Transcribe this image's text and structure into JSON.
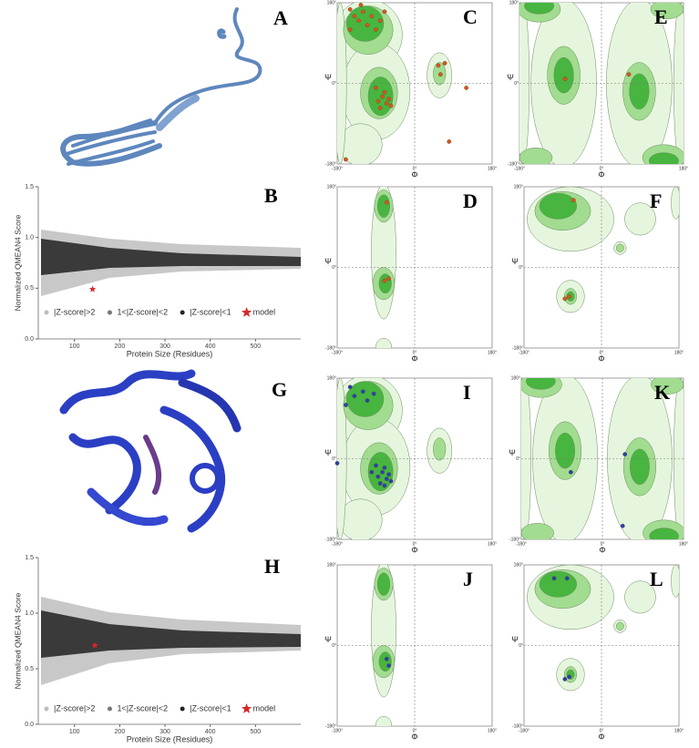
{
  "chart_data": [
    {
      "type": "scatter",
      "letter": "B",
      "xlabel": "Protein Size (Residues)",
      "ylabel": "Normalized QMEAN4 Score",
      "xlim": [
        20,
        600
      ],
      "ylim": [
        0,
        1.5
      ],
      "xticks": [
        100,
        200,
        300,
        400,
        500
      ],
      "yticks": [
        {
          "value": 0,
          "label": "0.0"
        },
        {
          "value": 0.5,
          "label": "0.5"
        },
        {
          "value": 1,
          "label": "1.0"
        },
        {
          "value": 1.5,
          "label": "1.5"
        }
      ],
      "series": [
        {
          "name": "|Z-score|>2",
          "color": "#bdbdbd"
        },
        {
          "name": "1<|Z-score|<2",
          "color": "#777777"
        },
        {
          "name": "|Z-score|<1",
          "color": "#222222"
        },
        {
          "name": "model",
          "color": "#d62728",
          "marker": "star",
          "x": [
            140
          ],
          "values": [
            0.49
          ]
        }
      ]
    },
    {
      "type": "scatter",
      "letter": "H",
      "xlabel": "Protein Size (Residues)",
      "ylabel": "Normalized QMEAN4 Score",
      "xlim": [
        20,
        600
      ],
      "ylim": [
        0,
        1.5
      ],
      "xticks": [
        100,
        200,
        300,
        400,
        500
      ],
      "yticks": [
        {
          "value": 0,
          "label": "0.0"
        },
        {
          "value": 0.5,
          "label": "0.5"
        },
        {
          "value": 1,
          "label": "1.0"
        },
        {
          "value": 1.5,
          "label": "1.5"
        }
      ],
      "series": [
        {
          "name": "|Z-score|>2",
          "color": "#bdbdbd"
        },
        {
          "name": "1<|Z-score|<2",
          "color": "#777777"
        },
        {
          "name": "|Z-score|<1",
          "color": "#222222"
        },
        {
          "name": "model",
          "color": "#d62728",
          "marker": "star",
          "x": [
            145
          ],
          "values": [
            0.71
          ]
        }
      ]
    }
  ],
  "structures": [
    {
      "letter": "A"
    },
    {
      "letter": "G"
    }
  ],
  "ramachandran": {
    "phi_label": "Φ",
    "psi_label": "Ψ",
    "ticks": [
      "-180°",
      "0°",
      "180°"
    ],
    "panels": [
      {
        "letter": "C",
        "region_style": "general",
        "point_color": "#d9541e",
        "points": [
          [
            -150,
            165
          ],
          [
            -140,
            150
          ],
          [
            -130,
            140
          ],
          [
            -120,
            160
          ],
          [
            -110,
            130
          ],
          [
            -100,
            150
          ],
          [
            -90,
            120
          ],
          [
            -80,
            140
          ],
          [
            -70,
            160
          ],
          [
            -150,
            120
          ],
          [
            -125,
            175
          ],
          [
            -85,
            -40
          ],
          [
            -75,
            -30
          ],
          [
            -65,
            -45
          ],
          [
            -70,
            -20
          ],
          [
            -60,
            -35
          ],
          [
            -90,
            -10
          ],
          [
            -55,
            -50
          ],
          [
            -80,
            -55
          ],
          [
            55,
            40
          ],
          [
            60,
            20
          ],
          [
            70,
            45
          ],
          [
            80,
            -130
          ],
          [
            120,
            -10
          ],
          [
            -160,
            -170
          ]
        ]
      },
      {
        "letter": "E",
        "region_style": "glycine",
        "point_color": "#d9541e",
        "points": [
          [
            -80,
            10
          ],
          [
            60,
            20
          ]
        ]
      },
      {
        "letter": "D",
        "region_style": "proline",
        "point_color": "#d9541e",
        "points": [
          [
            -65,
            145
          ],
          [
            -60,
            -25
          ],
          [
            -70,
            -30
          ]
        ]
      },
      {
        "letter": "F",
        "region_style": "prepro",
        "point_color": "#d9541e",
        "points": [
          [
            -65,
            150
          ],
          [
            -75,
            -65
          ],
          [
            -85,
            -70
          ]
        ]
      },
      {
        "letter": "I",
        "region_style": "general",
        "point_color": "#2a3fb5",
        "points": [
          [
            -150,
            160
          ],
          [
            -140,
            140
          ],
          [
            -120,
            150
          ],
          [
            -110,
            130
          ],
          [
            -95,
            145
          ],
          [
            -160,
            120
          ],
          [
            -85,
            -40
          ],
          [
            -75,
            -30
          ],
          [
            -65,
            -45
          ],
          [
            -70,
            -20
          ],
          [
            -60,
            -35
          ],
          [
            -90,
            -15
          ],
          [
            -55,
            -50
          ],
          [
            -80,
            -55
          ],
          [
            -70,
            -60
          ],
          [
            -100,
            -30
          ],
          [
            -180,
            -10
          ]
        ]
      },
      {
        "letter": "K",
        "region_style": "glycine",
        "point_color": "#2a3fb5",
        "points": [
          [
            50,
            10
          ],
          [
            -70,
            -30
          ],
          [
            45,
            -150
          ]
        ]
      },
      {
        "letter": "J",
        "region_style": "proline",
        "point_color": "#2a3fb5",
        "points": [
          [
            -65,
            -30
          ],
          [
            -60,
            -45
          ]
        ]
      },
      {
        "letter": "L",
        "region_style": "prepro",
        "point_color": "#2a3fb5",
        "points": [
          [
            -110,
            150
          ],
          [
            -80,
            150
          ],
          [
            -75,
            -70
          ],
          [
            -85,
            -75
          ]
        ]
      }
    ]
  }
}
